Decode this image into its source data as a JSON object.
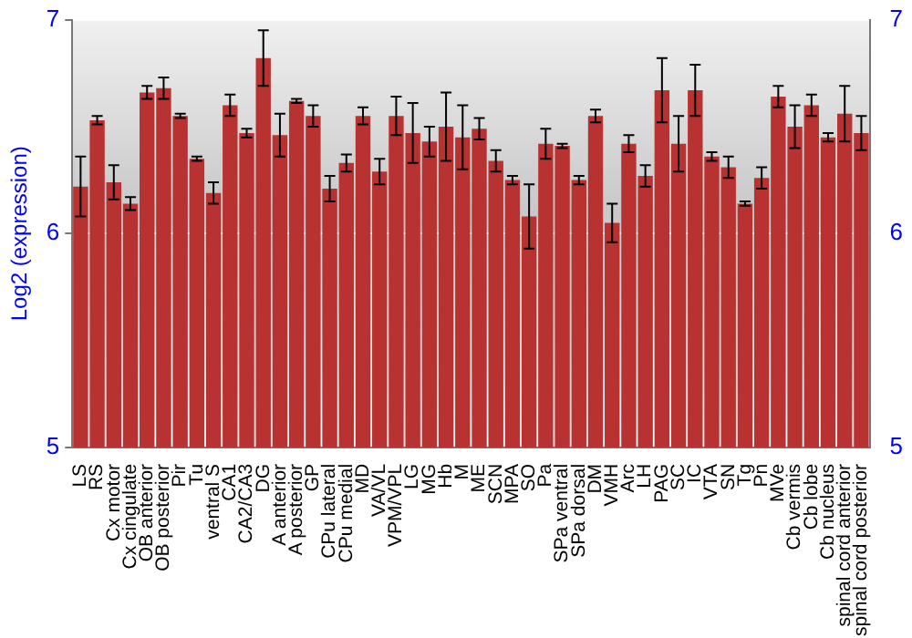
{
  "chart_data": {
    "type": "bar",
    "ylabel": "Log2 (expression)",
    "categories": [
      "LS",
      "RS",
      "Cx motor",
      "Cx cingulate",
      "OB anterior",
      "OB posterior",
      "Pir",
      "Tu",
      "ventral S",
      "CA1",
      "CA2/CA3",
      "DG",
      "A anterior",
      "A posterior",
      "GP",
      "CPu lateral",
      "CPu medial",
      "MD",
      "VA/VL",
      "VPM/VPL",
      "LG",
      "MG",
      "Hb",
      "M",
      "ME",
      "SCN",
      "MPA",
      "SO",
      "Pa",
      "SPa ventral",
      "SPa dorsal",
      "DM",
      "VMH",
      "Arc",
      "LH",
      "PAG",
      "SC",
      "IC",
      "VTA",
      "SN",
      "Tg",
      "Pn",
      "MVe",
      "Cb vermis",
      "Cb lobe",
      "Cb nucleus",
      "spinal cord anterior",
      "spinal cord posterior"
    ],
    "values": [
      6.22,
      6.53,
      6.24,
      6.14,
      6.66,
      6.68,
      6.55,
      6.35,
      6.19,
      6.6,
      6.47,
      6.82,
      6.46,
      6.62,
      6.55,
      6.21,
      6.33,
      6.55,
      6.29,
      6.55,
      6.47,
      6.43,
      6.5,
      6.45,
      6.49,
      6.34,
      6.25,
      6.08,
      6.42,
      6.41,
      6.25,
      6.55,
      6.05,
      6.42,
      6.27,
      6.67,
      6.42,
      6.67,
      6.36,
      6.31,
      6.14,
      6.26,
      6.64,
      6.5,
      6.6,
      6.45,
      6.56,
      6.47
    ],
    "errors": [
      0.14,
      0.02,
      0.08,
      0.03,
      0.03,
      0.05,
      0.01,
      0.01,
      0.05,
      0.05,
      0.02,
      0.13,
      0.1,
      0.01,
      0.05,
      0.06,
      0.04,
      0.04,
      0.06,
      0.09,
      0.14,
      0.07,
      0.16,
      0.15,
      0.05,
      0.05,
      0.02,
      0.15,
      0.07,
      0.01,
      0.02,
      0.03,
      0.09,
      0.04,
      0.05,
      0.15,
      0.13,
      0.12,
      0.02,
      0.05,
      0.01,
      0.05,
      0.05,
      0.1,
      0.05,
      0.02,
      0.13,
      0.08
    ],
    "color": "#b83232",
    "ylim": [
      5,
      7
    ],
    "yticks": [
      5,
      6,
      7
    ],
    "y2lim": [
      5,
      7
    ],
    "y2ticks": [
      5,
      6,
      7
    ],
    "grid": "y",
    "legend": false
  }
}
